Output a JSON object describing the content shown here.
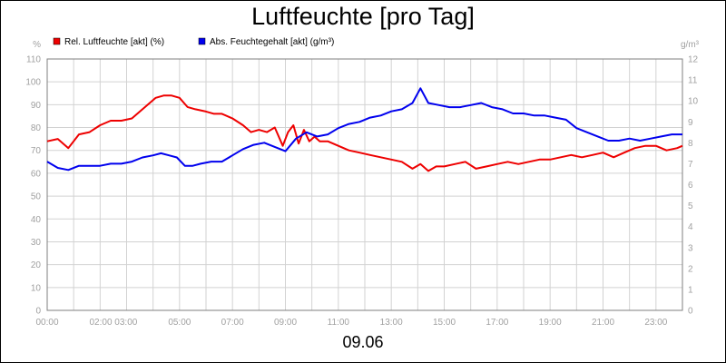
{
  "chart_data": {
    "type": "line",
    "title": "Luftfeuchte [pro Tag]",
    "date_label": "09.06",
    "left_axis": {
      "unit": "%",
      "ylim": [
        0,
        110
      ],
      "ticks": [
        "0",
        "10",
        "20",
        "30",
        "40",
        "50",
        "60",
        "70",
        "80",
        "90",
        "100",
        "110"
      ]
    },
    "right_axis": {
      "unit": "g/m³",
      "ylim": [
        0,
        12
      ],
      "ticks": [
        "0",
        "1",
        "2",
        "3",
        "4",
        "5",
        "6",
        "7",
        "8",
        "9",
        "10",
        "11",
        "12"
      ]
    },
    "xlim": [
      0,
      24
    ],
    "x_ticks": [
      {
        "h": 0,
        "label": "00:00"
      },
      {
        "h": 2.5,
        "label": "02:00 03:00"
      },
      {
        "h": 5,
        "label": "05:00"
      },
      {
        "h": 7,
        "label": "07:00"
      },
      {
        "h": 9,
        "label": "09:00"
      },
      {
        "h": 11,
        "label": "11:00"
      },
      {
        "h": 13,
        "label": "13:00"
      },
      {
        "h": 15,
        "label": "15:00"
      },
      {
        "h": 17,
        "label": "17:00"
      },
      {
        "h": 19,
        "label": "19:00"
      },
      {
        "h": 21,
        "label": "21:00"
      },
      {
        "h": 23,
        "label": "23:00"
      }
    ],
    "grid": true,
    "legend": "top-left",
    "series": [
      {
        "name": "Rel. Luftfeuchte [akt] (%)",
        "color": "#ee0000",
        "axis": "left",
        "x": [
          0,
          0.4,
          0.8,
          1.2,
          1.6,
          2,
          2.4,
          2.8,
          3.2,
          3.5,
          3.8,
          4.1,
          4.4,
          4.7,
          5,
          5.3,
          5.6,
          6,
          6.3,
          6.6,
          7,
          7.4,
          7.7,
          8,
          8.3,
          8.6,
          8.9,
          9.1,
          9.3,
          9.5,
          9.7,
          9.9,
          10.1,
          10.3,
          10.6,
          11,
          11.4,
          11.8,
          12.2,
          12.6,
          13,
          13.4,
          13.8,
          14.1,
          14.4,
          14.7,
          15,
          15.4,
          15.8,
          16.2,
          16.6,
          17,
          17.4,
          17.8,
          18.2,
          18.6,
          19,
          19.4,
          19.8,
          20.2,
          20.6,
          21,
          21.4,
          21.8,
          22.2,
          22.6,
          23,
          23.4,
          23.8,
          24
        ],
        "y": [
          74,
          75,
          71,
          77,
          78,
          81,
          83,
          83,
          84,
          87,
          90,
          93,
          94,
          94,
          93,
          89,
          88,
          87,
          86,
          86,
          84,
          81,
          78,
          79,
          78,
          80,
          72,
          78,
          81,
          73,
          79,
          74,
          76,
          74,
          74,
          72,
          70,
          69,
          68,
          67,
          66,
          65,
          62,
          64,
          61,
          63,
          63,
          64,
          65,
          62,
          63,
          64,
          65,
          64,
          65,
          66,
          66,
          67,
          68,
          67,
          68,
          69,
          67,
          69,
          71,
          72,
          72,
          70,
          71,
          72
        ]
      },
      {
        "name": "Abs. Feuchtegehalt [akt] (g/m³)",
        "color": "#0000ee",
        "axis": "right",
        "x": [
          0,
          0.4,
          0.8,
          1.2,
          1.6,
          2,
          2.4,
          2.8,
          3.2,
          3.6,
          4,
          4.3,
          4.6,
          4.9,
          5.2,
          5.5,
          5.8,
          6.2,
          6.6,
          7,
          7.4,
          7.8,
          8.2,
          8.6,
          9,
          9.4,
          9.8,
          10.2,
          10.6,
          11,
          11.4,
          11.8,
          12.2,
          12.6,
          13,
          13.4,
          13.8,
          14.1,
          14.4,
          14.8,
          15.2,
          15.6,
          16,
          16.4,
          16.8,
          17.2,
          17.6,
          18,
          18.4,
          18.8,
          19.2,
          19.6,
          20,
          20.4,
          20.8,
          21.2,
          21.6,
          22,
          22.4,
          22.8,
          23.2,
          23.6,
          24
        ],
        "y": [
          7.1,
          6.8,
          6.7,
          6.9,
          6.9,
          6.9,
          7,
          7,
          7.1,
          7.3,
          7.4,
          7.5,
          7.4,
          7.3,
          6.9,
          6.9,
          7,
          7.1,
          7.1,
          7.4,
          7.7,
          7.9,
          8,
          7.8,
          7.6,
          8.2,
          8.5,
          8.3,
          8.4,
          8.7,
          8.9,
          9,
          9.2,
          9.3,
          9.5,
          9.6,
          9.9,
          10.6,
          9.9,
          9.8,
          9.7,
          9.7,
          9.8,
          9.9,
          9.7,
          9.6,
          9.4,
          9.4,
          9.3,
          9.3,
          9.2,
          9.1,
          8.7,
          8.5,
          8.3,
          8.1,
          8.1,
          8.2,
          8.1,
          8.2,
          8.3,
          8.4,
          8.4
        ]
      }
    ]
  }
}
